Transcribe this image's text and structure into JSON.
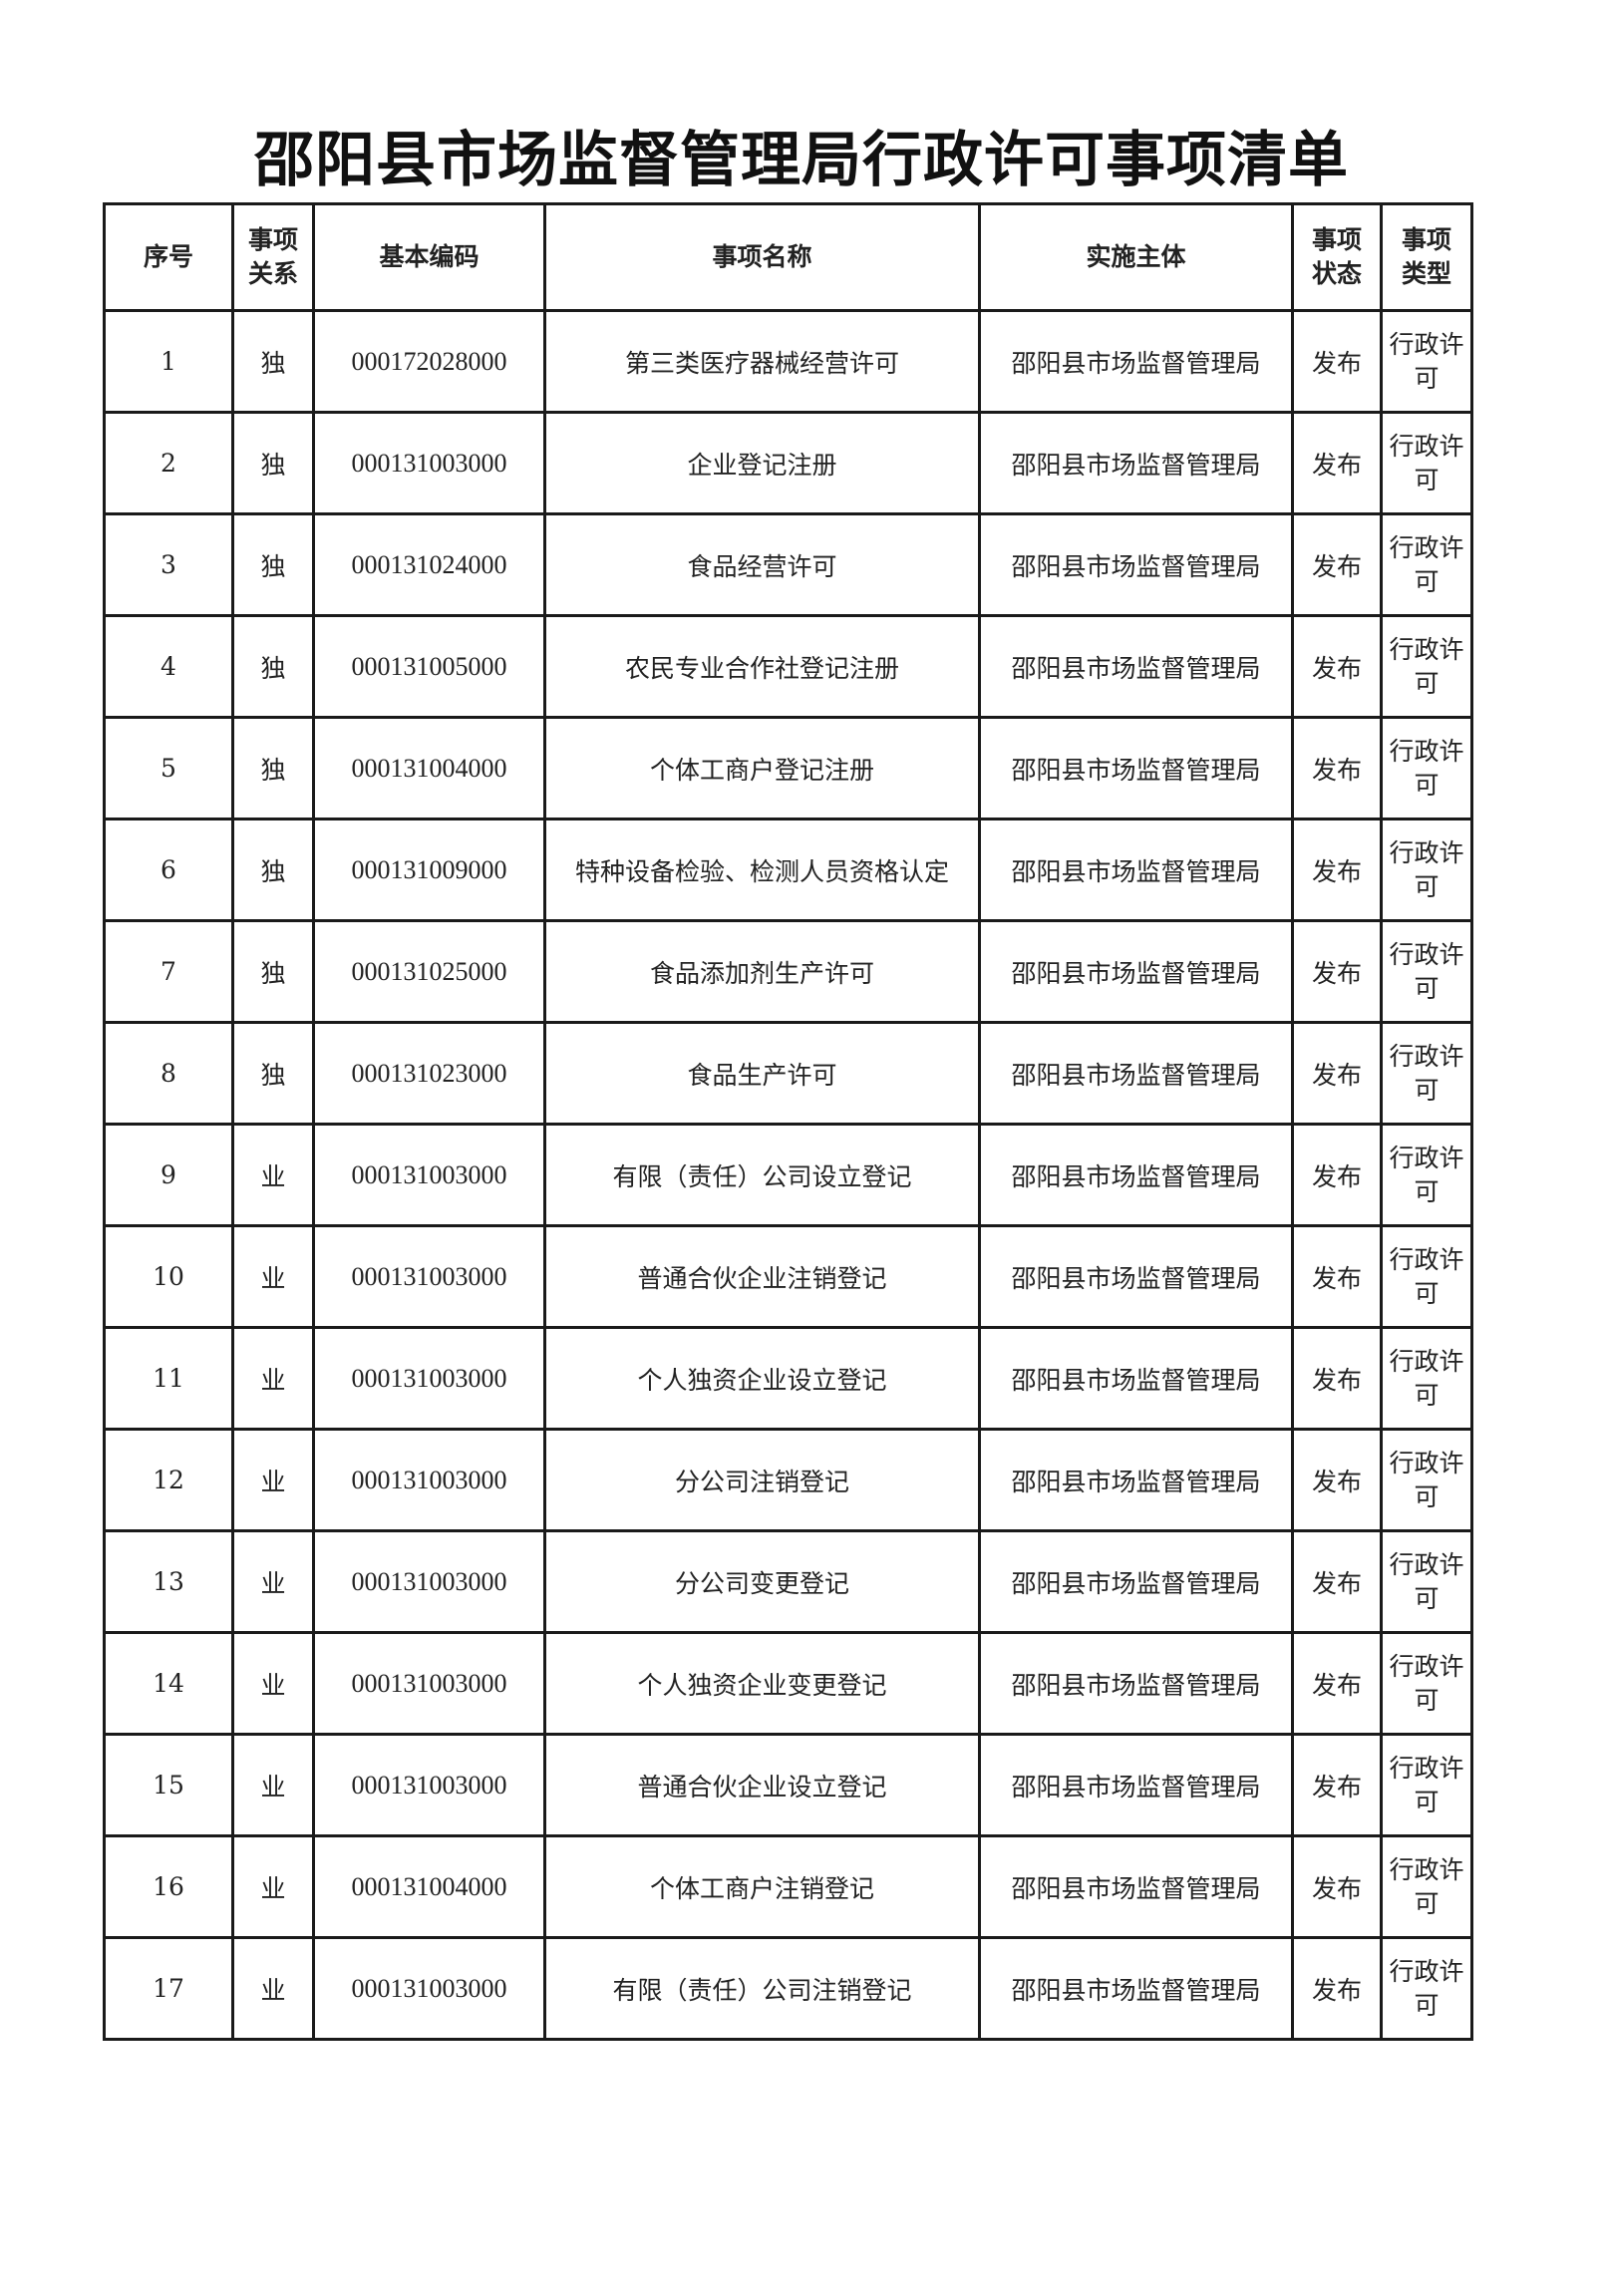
{
  "title": "邵阳县市场监督管理局行政许可事项清单",
  "columns": [
    "序号",
    "事项\n关系",
    "基本编码",
    "事项名称",
    "实施主体",
    "事项\n状态",
    "事项\n类型"
  ],
  "rows": [
    [
      "1",
      "独",
      "000172028000",
      "第三类医疗器械经营许可",
      "邵阳县市场监督管理局",
      "发布",
      "行政许可"
    ],
    [
      "2",
      "独",
      "000131003000",
      "企业登记注册",
      "邵阳县市场监督管理局",
      "发布",
      "行政许可"
    ],
    [
      "3",
      "独",
      "000131024000",
      "食品经营许可",
      "邵阳县市场监督管理局",
      "发布",
      "行政许可"
    ],
    [
      "4",
      "独",
      "000131005000",
      "农民专业合作社登记注册",
      "邵阳县市场监督管理局",
      "发布",
      "行政许可"
    ],
    [
      "5",
      "独",
      "000131004000",
      "个体工商户登记注册",
      "邵阳县市场监督管理局",
      "发布",
      "行政许可"
    ],
    [
      "6",
      "独",
      "000131009000",
      "特种设备检验、检测人员资格认定",
      "邵阳县市场监督管理局",
      "发布",
      "行政许可"
    ],
    [
      "7",
      "独",
      "000131025000",
      "食品添加剂生产许可",
      "邵阳县市场监督管理局",
      "发布",
      "行政许可"
    ],
    [
      "8",
      "独",
      "000131023000",
      "食品生产许可",
      "邵阳县市场监督管理局",
      "发布",
      "行政许可"
    ],
    [
      "9",
      "业",
      "000131003000",
      "有限（责任）公司设立登记",
      "邵阳县市场监督管理局",
      "发布",
      "行政许可"
    ],
    [
      "10",
      "业",
      "000131003000",
      "普通合伙企业注销登记",
      "邵阳县市场监督管理局",
      "发布",
      "行政许可"
    ],
    [
      "11",
      "业",
      "000131003000",
      "个人独资企业设立登记",
      "邵阳县市场监督管理局",
      "发布",
      "行政许可"
    ],
    [
      "12",
      "业",
      "000131003000",
      "分公司注销登记",
      "邵阳县市场监督管理局",
      "发布",
      "行政许可"
    ],
    [
      "13",
      "业",
      "000131003000",
      "分公司变更登记",
      "邵阳县市场监督管理局",
      "发布",
      "行政许可"
    ],
    [
      "14",
      "业",
      "000131003000",
      "个人独资企业变更登记",
      "邵阳县市场监督管理局",
      "发布",
      "行政许可"
    ],
    [
      "15",
      "业",
      "000131003000",
      "普通合伙企业设立登记",
      "邵阳县市场监督管理局",
      "发布",
      "行政许可"
    ],
    [
      "16",
      "业",
      "000131004000",
      "个体工商户注销登记",
      "邵阳县市场监督管理局",
      "发布",
      "行政许可"
    ],
    [
      "17",
      "业",
      "000131003000",
      "有限（责任）公司注销登记",
      "邵阳县市场监督管理局",
      "发布",
      "行政许可"
    ]
  ]
}
